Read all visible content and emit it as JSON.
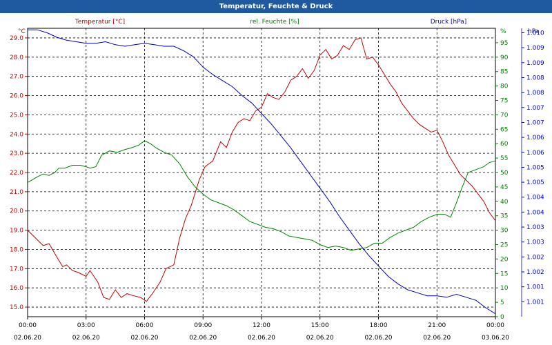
{
  "window": {
    "title": "Temperatur, Feuchte & Druck"
  },
  "chart_data": {
    "type": "line",
    "title": "Temperatur, Feuchte & Druck",
    "x": {
      "labels": [
        {
          "time": "00:00",
          "date": "02.06.20"
        },
        {
          "time": "03:00",
          "date": "02.06.20"
        },
        {
          "time": "06:00",
          "date": "02.06.20"
        },
        {
          "time": "09:00",
          "date": "02.06.20"
        },
        {
          "time": "12:00",
          "date": "02.06.20"
        },
        {
          "time": "15:00",
          "date": "02.06.20"
        },
        {
          "time": "18:00",
          "date": "02.06.20"
        },
        {
          "time": "21:00",
          "date": "02.06.20"
        },
        {
          "time": "00:00",
          "date": "03.06.20"
        }
      ],
      "range_hours": [
        0,
        24
      ]
    },
    "axes": {
      "temperature": {
        "legend": "Temperatur [°C]",
        "unit": "°C",
        "range": [
          14.5,
          29.5
        ],
        "ticks": [
          "29.0",
          "28.0",
          "27.0",
          "26.0",
          "25.0",
          "24.0",
          "23.0",
          "22.0",
          "21.0",
          "20.0",
          "19.0",
          "18.0",
          "17.0",
          "16.0",
          "15.0"
        ],
        "color": "#c00000"
      },
      "humidity": {
        "legend": "rel. Feuchte [%]",
        "unit": "%",
        "range": [
          0,
          100
        ],
        "ticks": [
          "95",
          "90",
          "85",
          "80",
          "75",
          "70",
          "65",
          "60",
          "55",
          "50",
          "45",
          "40",
          "35",
          "30",
          "25",
          "20",
          "15",
          "10",
          "5",
          "0"
        ],
        "color": "#008000"
      },
      "pressure": {
        "legend": "Druck [hPa]",
        "unit": "hPa",
        "range": [
          1000.7,
          1010.35
        ],
        "ticks": [
          "1.010",
          "1.009",
          "1.009",
          "1.008",
          "1.008",
          "1.007",
          "1.007",
          "1.006",
          "1.006",
          "1.005",
          "1.005",
          "1.004",
          "1.004",
          "1.003",
          "1.003",
          "1.002",
          "1.002",
          "1.001",
          "1.001"
        ],
        "color": "#0000c0"
      }
    },
    "series": [
      {
        "name": "Temperatur [°C]",
        "axis": "temperature",
        "color": "#c00000",
        "points": [
          [
            0,
            19.0
          ],
          [
            0.5,
            18.5
          ],
          [
            0.8,
            18.2
          ],
          [
            1.1,
            18.3
          ],
          [
            1.5,
            17.6
          ],
          [
            1.8,
            17.1
          ],
          [
            2.0,
            17.2
          ],
          [
            2.3,
            16.9
          ],
          [
            2.6,
            16.8
          ],
          [
            3.0,
            16.6
          ],
          [
            3.2,
            16.9
          ],
          [
            3.4,
            16.6
          ],
          [
            3.6,
            16.3
          ],
          [
            3.9,
            15.5
          ],
          [
            4.2,
            15.4
          ],
          [
            4.5,
            15.9
          ],
          [
            4.8,
            15.5
          ],
          [
            5.1,
            15.7
          ],
          [
            5.4,
            15.6
          ],
          [
            5.8,
            15.5
          ],
          [
            6.1,
            15.3
          ],
          [
            6.4,
            15.7
          ],
          [
            6.8,
            16.3
          ],
          [
            7.1,
            17.0
          ],
          [
            7.5,
            17.2
          ],
          [
            7.8,
            18.6
          ],
          [
            8.1,
            19.6
          ],
          [
            8.4,
            20.3
          ],
          [
            8.8,
            21.6
          ],
          [
            9.1,
            22.3
          ],
          [
            9.5,
            22.6
          ],
          [
            9.9,
            23.6
          ],
          [
            10.2,
            23.3
          ],
          [
            10.5,
            24.1
          ],
          [
            10.8,
            24.6
          ],
          [
            11.1,
            24.8
          ],
          [
            11.4,
            24.7
          ],
          [
            11.7,
            25.2
          ],
          [
            12.0,
            25.4
          ],
          [
            12.3,
            26.1
          ],
          [
            12.6,
            25.9
          ],
          [
            12.9,
            25.8
          ],
          [
            13.2,
            26.2
          ],
          [
            13.5,
            26.8
          ],
          [
            13.8,
            27.0
          ],
          [
            14.1,
            27.4
          ],
          [
            14.4,
            26.9
          ],
          [
            14.7,
            27.3
          ],
          [
            15.0,
            28.1
          ],
          [
            15.3,
            28.4
          ],
          [
            15.6,
            27.9
          ],
          [
            15.9,
            28.1
          ],
          [
            16.2,
            28.6
          ],
          [
            16.5,
            28.4
          ],
          [
            16.8,
            28.9
          ],
          [
            17.1,
            29.0
          ],
          [
            17.4,
            27.9
          ],
          [
            17.7,
            28.0
          ],
          [
            18.0,
            27.6
          ],
          [
            18.3,
            27.1
          ],
          [
            18.6,
            26.6
          ],
          [
            18.9,
            26.2
          ],
          [
            19.2,
            25.6
          ],
          [
            19.5,
            25.2
          ],
          [
            19.8,
            24.8
          ],
          [
            20.1,
            24.5
          ],
          [
            20.4,
            24.3
          ],
          [
            20.7,
            24.1
          ],
          [
            21.0,
            24.2
          ],
          [
            21.3,
            23.6
          ],
          [
            21.6,
            22.9
          ],
          [
            21.9,
            22.4
          ],
          [
            22.2,
            21.9
          ],
          [
            22.5,
            21.6
          ],
          [
            22.8,
            21.3
          ],
          [
            23.1,
            20.9
          ],
          [
            23.4,
            20.5
          ],
          [
            23.7,
            19.9
          ],
          [
            24.0,
            19.5
          ]
        ]
      },
      {
        "name": "rel. Feuchte [%]",
        "axis": "humidity",
        "color": "#008000",
        "points": [
          [
            0,
            46.5
          ],
          [
            0.5,
            48.5
          ],
          [
            0.8,
            49.5
          ],
          [
            1.1,
            49.0
          ],
          [
            1.4,
            50.0
          ],
          [
            1.6,
            51.5
          ],
          [
            1.9,
            51.5
          ],
          [
            2.3,
            52.5
          ],
          [
            2.7,
            52.5
          ],
          [
            3.0,
            52.0
          ],
          [
            3.2,
            51.5
          ],
          [
            3.5,
            52.0
          ],
          [
            3.8,
            56.0
          ],
          [
            4.2,
            57.5
          ],
          [
            4.6,
            57.0
          ],
          [
            5.0,
            58.0
          ],
          [
            5.3,
            58.5
          ],
          [
            5.7,
            59.5
          ],
          [
            6.0,
            61.0
          ],
          [
            6.3,
            60.0
          ],
          [
            6.6,
            58.5
          ],
          [
            7.0,
            57.0
          ],
          [
            7.4,
            56.0
          ],
          [
            7.8,
            53.0
          ],
          [
            8.2,
            48.5
          ],
          [
            8.6,
            45.0
          ],
          [
            9.0,
            42.5
          ],
          [
            9.4,
            40.5
          ],
          [
            9.8,
            39.5
          ],
          [
            10.2,
            38.5
          ],
          [
            10.6,
            37.0
          ],
          [
            11.0,
            35.0
          ],
          [
            11.4,
            33.0
          ],
          [
            11.8,
            32.0
          ],
          [
            12.2,
            31.0
          ],
          [
            12.6,
            30.5
          ],
          [
            13.0,
            29.5
          ],
          [
            13.4,
            28.0
          ],
          [
            13.8,
            27.5
          ],
          [
            14.2,
            27.0
          ],
          [
            14.6,
            26.5
          ],
          [
            15.0,
            25.0
          ],
          [
            15.4,
            24.0
          ],
          [
            15.8,
            24.5
          ],
          [
            16.2,
            24.0
          ],
          [
            16.6,
            23.0
          ],
          [
            17.0,
            23.5
          ],
          [
            17.4,
            24.0
          ],
          [
            17.8,
            25.5
          ],
          [
            18.2,
            25.5
          ],
          [
            18.6,
            27.5
          ],
          [
            19.0,
            29.0
          ],
          [
            19.4,
            30.0
          ],
          [
            19.8,
            31.0
          ],
          [
            20.2,
            33.0
          ],
          [
            20.6,
            34.5
          ],
          [
            21.0,
            35.5
          ],
          [
            21.4,
            35.5
          ],
          [
            21.7,
            34.5
          ],
          [
            22.0,
            39.5
          ],
          [
            22.3,
            45.0
          ],
          [
            22.6,
            50.0
          ],
          [
            23.0,
            51.0
          ],
          [
            23.4,
            52.0
          ],
          [
            23.7,
            53.5
          ],
          [
            24.0,
            54.0
          ]
        ]
      },
      {
        "name": "Druck [hPa]",
        "axis": "pressure",
        "color": "#0000c0",
        "points": [
          [
            0,
            1010.3
          ],
          [
            0.5,
            1010.3
          ],
          [
            1.0,
            1010.2
          ],
          [
            1.5,
            1010.05
          ],
          [
            2.0,
            1009.95
          ],
          [
            2.5,
            1009.9
          ],
          [
            3.0,
            1009.85
          ],
          [
            3.5,
            1009.85
          ],
          [
            4.0,
            1009.9
          ],
          [
            4.5,
            1009.8
          ],
          [
            5.0,
            1009.75
          ],
          [
            5.5,
            1009.8
          ],
          [
            6.0,
            1009.85
          ],
          [
            6.5,
            1009.8
          ],
          [
            7.0,
            1009.75
          ],
          [
            7.5,
            1009.75
          ],
          [
            8.0,
            1009.6
          ],
          [
            8.5,
            1009.4
          ],
          [
            9.0,
            1009.05
          ],
          [
            9.5,
            1008.8
          ],
          [
            10.0,
            1008.6
          ],
          [
            10.5,
            1008.4
          ],
          [
            11.0,
            1008.1
          ],
          [
            11.5,
            1007.85
          ],
          [
            12.0,
            1007.5
          ],
          [
            12.5,
            1007.15
          ],
          [
            13.0,
            1006.75
          ],
          [
            13.5,
            1006.35
          ],
          [
            14.0,
            1005.9
          ],
          [
            14.5,
            1005.45
          ],
          [
            15.0,
            1005.0
          ],
          [
            15.5,
            1004.55
          ],
          [
            16.0,
            1004.05
          ],
          [
            16.5,
            1003.6
          ],
          [
            17.0,
            1003.15
          ],
          [
            17.5,
            1002.75
          ],
          [
            18.0,
            1002.4
          ],
          [
            18.5,
            1002.05
          ],
          [
            19.0,
            1001.8
          ],
          [
            19.5,
            1001.6
          ],
          [
            20.0,
            1001.5
          ],
          [
            20.5,
            1001.4
          ],
          [
            21.0,
            1001.4
          ],
          [
            21.5,
            1001.35
          ],
          [
            22.0,
            1001.45
          ],
          [
            22.5,
            1001.35
          ],
          [
            23.0,
            1001.25
          ],
          [
            23.5,
            1001.0
          ],
          [
            24.0,
            1000.8
          ]
        ]
      }
    ],
    "grid": true
  }
}
